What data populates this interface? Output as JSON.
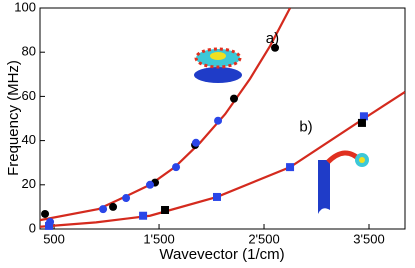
{
  "chart_data": {
    "type": "scatter",
    "xlabel": "Wavevector (1/cm)",
    "ylabel": "Frequency (MHz)",
    "xlim": [
      366,
      3843
    ],
    "ylim": [
      0,
      100
    ],
    "xticks": [
      500,
      {
        "value": 1500,
        "label": "1'500"
      },
      {
        "value": 2500,
        "label": "2'500"
      },
      {
        "value": 3500,
        "label": "3'500"
      }
    ],
    "yticks": [
      0,
      20,
      40,
      60,
      80,
      100
    ],
    "annotations": [
      {
        "text": "a)",
        "x": 2580,
        "y": 86
      },
      {
        "text": "b)",
        "x": 2900,
        "y": 46
      }
    ],
    "curves": [
      {
        "color": "#d42a1e",
        "x": [
          366,
          922,
          1150,
          1414,
          1650,
          1890,
          2130,
          2367,
          2560,
          2748
        ],
        "values": [
          4,
          9,
          14,
          20,
          28,
          39,
          52,
          68,
          83,
          100
        ]
      },
      {
        "color": "#d42a1e",
        "x": [
          366,
          900,
          1414,
          2052,
          2748,
          3452,
          3843
        ],
        "values": [
          1,
          3,
          6,
          14.5,
          28,
          50,
          62
        ]
      }
    ],
    "series": [
      {
        "color": "#000000",
        "marker": "circle",
        "x": [
          414,
          1062,
          1462,
          1843,
          2214,
          2605
        ],
        "values": [
          6.8,
          10,
          21,
          38,
          59,
          82
        ]
      },
      {
        "color": "#2a46e8",
        "marker": "circle",
        "x": [
          462,
          967,
          1186,
          1414,
          1662,
          1852,
          2062
        ],
        "values": [
          3.2,
          9,
          14,
          20,
          28,
          39,
          49
        ]
      },
      {
        "color": "#2a46e8",
        "marker": "square",
        "x": [
          452,
          1348,
          2052,
          2748,
          3452
        ],
        "values": [
          1.4,
          6,
          14.5,
          28,
          51
        ]
      },
      {
        "color": "#000000",
        "marker": "square",
        "x": [
          1557,
          3433
        ],
        "values": [
          8.6,
          48
        ]
      }
    ]
  }
}
